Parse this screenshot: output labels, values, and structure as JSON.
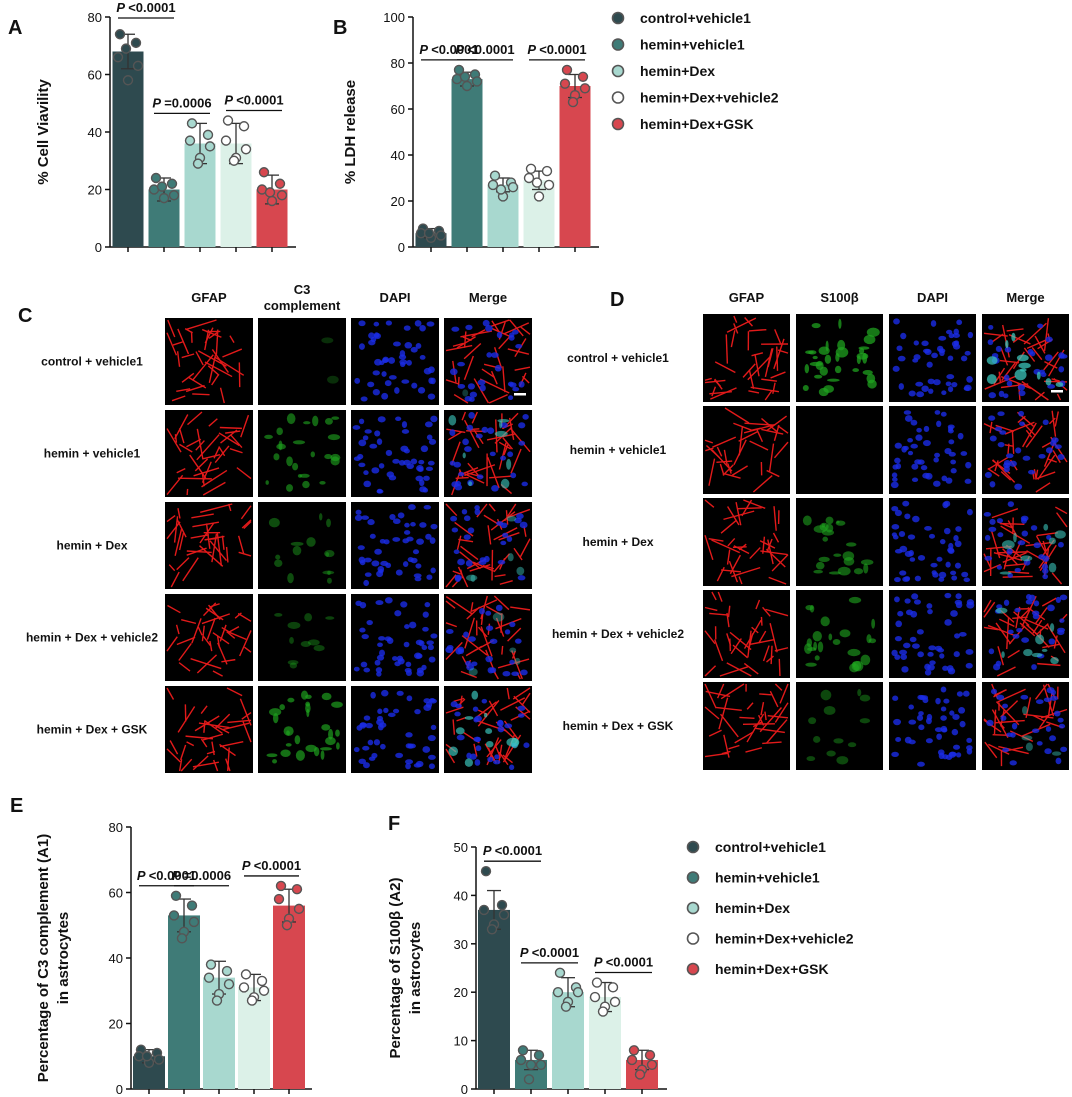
{
  "colors": {
    "control_vehicle1": "#2e4a4f",
    "hemin_vehicle1": "#3f7b77",
    "hemin_dex": "#a8d8cf",
    "hemin_dex_vehicle2": "#dcf1e8",
    "hemin_dex_gsk": "#d7474f",
    "gfap_stain": "#e11a1a",
    "c3_stain": "#1fa51f",
    "dapi_stain": "#1a2ce6"
  },
  "legend": {
    "items": [
      "control+vehicle1",
      "hemin+vehicle1",
      "hemin+Dex",
      "hemin+Dex+vehicle2",
      "hemin+Dex+GSK"
    ]
  },
  "panels": {
    "A": "A",
    "B": "B",
    "C": "C",
    "D": "D",
    "E": "E",
    "F": "F"
  },
  "chart_data": [
    {
      "id": "A",
      "type": "bar",
      "ylabel": "% Cell Viavility",
      "ylim": [
        0,
        80
      ],
      "yticks": [
        "0",
        "20",
        "40",
        "60",
        "80"
      ],
      "categories": [
        "control+vehicle1",
        "hemin+vehicle1",
        "hemin+Dex",
        "hemin+Dex+vehicle2",
        "hemin+Dex+GSK"
      ],
      "values": [
        68,
        20,
        36,
        36,
        20
      ],
      "sd": [
        6,
        4,
        7,
        7,
        5
      ],
      "points": [
        [
          74,
          71,
          66,
          63,
          58,
          69
        ],
        [
          24,
          22,
          20,
          18,
          17,
          21
        ],
        [
          43,
          39,
          37,
          35,
          31,
          29
        ],
        [
          44,
          42,
          37,
          34,
          31,
          30
        ],
        [
          26,
          22,
          20,
          18,
          16,
          19
        ]
      ],
      "comparisons": [
        {
          "from": 0,
          "to": 1,
          "text": "P <0.0001",
          "level": 1
        },
        {
          "from": 1,
          "to": 2,
          "text": "P =0.0006",
          "level": 2
        },
        {
          "from": 3,
          "to": 4,
          "text": "P <0.0001",
          "level": 3
        }
      ]
    },
    {
      "id": "B",
      "type": "bar",
      "ylabel": "% LDH release",
      "ylim": [
        0,
        100
      ],
      "yticks": [
        "0",
        "20",
        "40",
        "60",
        "80",
        "100"
      ],
      "categories": [
        "control+vehicle1",
        "hemin+vehicle1",
        "hemin+Dex",
        "hemin+Dex+vehicle2",
        "hemin+Dex+GSK"
      ],
      "values": [
        6,
        73,
        27,
        29,
        70
      ],
      "sd": [
        2,
        3,
        3,
        4,
        5
      ],
      "points": [
        [
          8,
          7,
          6,
          5,
          4,
          6
        ],
        [
          77,
          75,
          73,
          72,
          70,
          74
        ],
        [
          31,
          28,
          27,
          26,
          22,
          25
        ],
        [
          34,
          33,
          30,
          27,
          22,
          28
        ],
        [
          77,
          74,
          71,
          69,
          66,
          63
        ]
      ],
      "comparisons": [
        {
          "from": 0,
          "to": 1,
          "text": "P <0.0001",
          "level": 1
        },
        {
          "from": 1,
          "to": 2,
          "text": "P <0.0001",
          "level": 2
        },
        {
          "from": 3,
          "to": 4,
          "text": "P <0.0001",
          "level": 3
        }
      ]
    },
    {
      "id": "E",
      "type": "bar",
      "ylabel": "Percentage of C3 complement (A1)",
      "ylabel2": "in astrocytes",
      "ylim": [
        0,
        80
      ],
      "yticks": [
        "0",
        "20",
        "40",
        "60",
        "80"
      ],
      "categories": [
        "control+vehicle1",
        "hemin+vehicle1",
        "hemin+Dex",
        "hemin+Dex+vehicle2",
        "hemin+Dex+GSK"
      ],
      "values": [
        10,
        53,
        34,
        31,
        56
      ],
      "sd": [
        2,
        5,
        5,
        4,
        5
      ],
      "points": [
        [
          12,
          11,
          10,
          9,
          8,
          10
        ],
        [
          59,
          56,
          53,
          51,
          48,
          46
        ],
        [
          38,
          36,
          34,
          32,
          29,
          27
        ],
        [
          35,
          33,
          31,
          30,
          28,
          27
        ],
        [
          62,
          61,
          58,
          55,
          52,
          50
        ]
      ],
      "comparisons": [
        {
          "from": 0,
          "to": 1,
          "text": "P <0.0001",
          "level": 1
        },
        {
          "from": 1,
          "to": 2,
          "text": "P =0.0006",
          "level": 2
        },
        {
          "from": 3,
          "to": 4,
          "text": "P <0.0001",
          "level": 3
        }
      ]
    },
    {
      "id": "F",
      "type": "bar",
      "ylabel": "Percentage of S100β (A2)",
      "ylabel2": "in astrocytes",
      "ylim": [
        0,
        50
      ],
      "yticks": [
        "0",
        "10",
        "20",
        "30",
        "40",
        "50"
      ],
      "categories": [
        "control+vehicle1",
        "hemin+vehicle1",
        "hemin+Dex",
        "hemin+Dex+vehicle2",
        "hemin+Dex+GSK"
      ],
      "values": [
        37,
        6,
        20,
        19,
        6
      ],
      "sd": [
        4,
        2,
        3,
        3,
        2
      ],
      "points": [
        [
          45,
          38,
          37,
          36,
          34,
          33
        ],
        [
          8,
          7,
          6,
          5,
          5,
          2
        ],
        [
          24,
          21,
          20,
          20,
          18,
          17
        ],
        [
          22,
          21,
          19,
          18,
          17,
          16
        ],
        [
          8,
          7,
          6,
          5,
          4,
          3
        ]
      ],
      "comparisons": [
        {
          "from": 0,
          "to": 1,
          "text": "P <0.0001",
          "level": 1
        },
        {
          "from": 1,
          "to": 2,
          "text": "P <0.0001",
          "level": 2
        },
        {
          "from": 3,
          "to": 4,
          "text": "P <0.0001",
          "level": 3
        }
      ]
    }
  ],
  "micrograph_panels": {
    "C": {
      "columns": [
        "GFAP",
        "C3\ncomplement",
        "DAPI",
        "Merge"
      ],
      "rows": [
        "control + vehicle1",
        "hemin + vehicle1",
        "hemin + Dex",
        "hemin + Dex + vehicle2",
        "hemin + Dex + GSK"
      ],
      "green_intensity": [
        0.05,
        0.6,
        0.35,
        0.25,
        0.7
      ]
    },
    "D": {
      "columns": [
        "GFAP",
        "S100β",
        "DAPI",
        "Merge"
      ],
      "rows": [
        "control + vehicle1",
        "hemin + vehicle1",
        "hemin + Dex",
        "hemin + Dex + vehicle2",
        "hemin + Dex + GSK"
      ],
      "green_intensity": [
        0.8,
        0.0,
        0.55,
        0.6,
        0.3
      ]
    }
  }
}
